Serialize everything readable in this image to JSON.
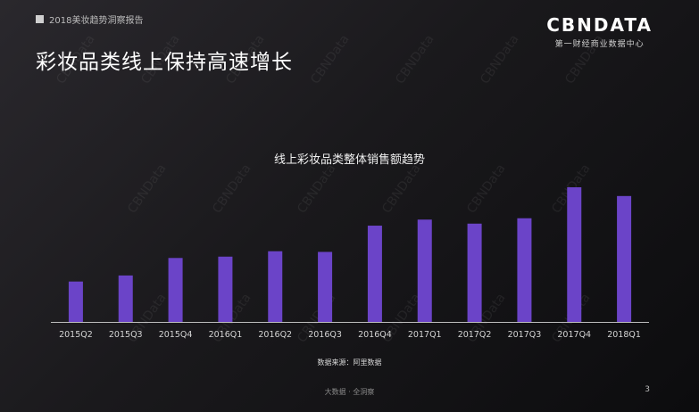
{
  "header": {
    "tag": "2018美妆趋势洞察报告"
  },
  "title": "彩妆品类线上保持高速增长",
  "logo": {
    "text": "CBNDATA",
    "subtitle": "第一财经商业数据中心"
  },
  "watermark_text": "CBNData",
  "source": "数据来源：阿里数据",
  "footer": {
    "center": "大数据 · 全洞察",
    "page": "3"
  },
  "colors": {
    "bar": "#6b44c8",
    "axis": "#bdbdbd",
    "background": "#1a191c"
  },
  "chart_data": {
    "type": "bar",
    "title": "线上彩妆品类整体销售额趋势",
    "xlabel": "",
    "ylabel": "",
    "categories": [
      "2015Q2",
      "2015Q3",
      "2015Q4",
      "2016Q1",
      "2016Q2",
      "2016Q3",
      "2016Q4",
      "2017Q1",
      "2017Q2",
      "2017Q3",
      "2017Q4",
      "2018Q1"
    ],
    "values": [
      30,
      34.5,
      47.5,
      48.5,
      52.5,
      52,
      71.5,
      76,
      73,
      77,
      100,
      93.5
    ],
    "ylim": [
      0,
      100
    ],
    "grid": false,
    "legend": "none"
  }
}
